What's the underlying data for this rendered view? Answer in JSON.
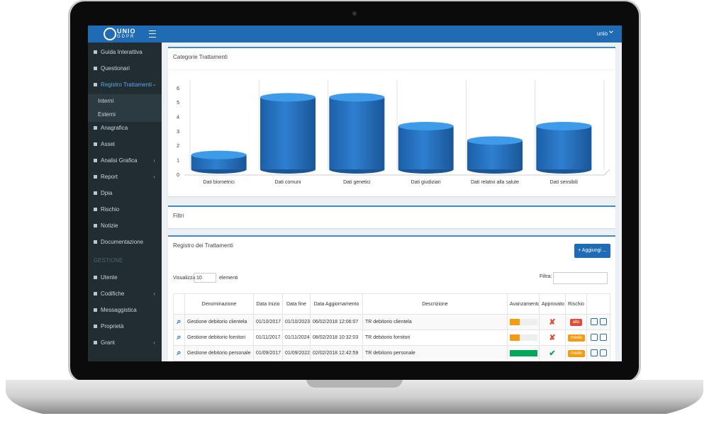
{
  "header": {
    "logo_top": "UNIO",
    "logo_bottom": "GDPR",
    "user": "unio"
  },
  "sidebar": {
    "items": [
      {
        "label": "Guida Interattiva",
        "expandable": false
      },
      {
        "label": "Questionari",
        "expandable": false
      },
      {
        "label": "Registro Trattamenti",
        "expandable": true,
        "active": true,
        "children": [
          "Interni",
          "Esterni"
        ]
      },
      {
        "label": "Anagrafica",
        "expandable": false
      },
      {
        "label": "Asset",
        "expandable": false
      },
      {
        "label": "Analisi Grafica",
        "expandable": true
      },
      {
        "label": "Report",
        "expandable": true
      },
      {
        "label": "Dpia",
        "expandable": false
      },
      {
        "label": "Rischio",
        "expandable": false
      },
      {
        "label": "Notizie",
        "expandable": false
      },
      {
        "label": "Documentazione",
        "expandable": false
      }
    ],
    "section": "GESTIONE",
    "section_items": [
      {
        "label": "Utente",
        "expandable": false
      },
      {
        "label": "Codifiche",
        "expandable": true
      },
      {
        "label": "Messaggistica",
        "expandable": false
      },
      {
        "label": "Proprietà",
        "expandable": false
      },
      {
        "label": "Grant",
        "expandable": true
      }
    ]
  },
  "chart_data": {
    "type": "bar",
    "title": "Categorie Trattamenti",
    "categories": [
      "Dati biometrici",
      "Dati comuni",
      "Dati genetici",
      "Dati giudiziari",
      "Dati relativi alla salute",
      "Dati sensibili"
    ],
    "values": [
      1,
      5,
      5,
      3,
      2,
      3
    ],
    "color": "#2f7fd0",
    "ylim": [
      0,
      6
    ],
    "yticks": [
      0,
      1,
      2,
      3,
      4,
      5,
      6
    ]
  },
  "filters": {
    "title": "Filtri"
  },
  "register": {
    "title": "Registro dei Trattamenti",
    "add_button": "+ Aggiungi ...",
    "show_label": "Visualizza",
    "page_size": "10",
    "entries_label": "elementi",
    "filter_label": "Filtra:",
    "columns": [
      "Denominazione",
      "Data Inizio",
      "Data fine",
      "Data Aggiornamento",
      "Descrizione",
      "Avanzamento",
      "Approvato",
      "Rischio"
    ],
    "rows": [
      {
        "name": "Gestione debitorio clientela",
        "start": "01/10/2017",
        "end": "01/10/2023",
        "updated": "06/02/2018 12:06:07",
        "description": "TR debitorio clientela",
        "progress": 35,
        "progress_color": "#f39c12",
        "approved": false,
        "risk": "alto",
        "risk_color": "#dd4b39"
      },
      {
        "name": "Gestione debitorio fornitori",
        "start": "01/11/2017",
        "end": "01/11/2024",
        "updated": "08/02/2018 10:32:03",
        "description": "TR debitorio fornitori",
        "progress": 35,
        "progress_color": "#f39c12",
        "approved": false,
        "risk": "medio",
        "risk_color": "#f39c12"
      },
      {
        "name": "Gestione debitorio personale",
        "start": "01/09/2017",
        "end": "01/09/2022",
        "updated": "02/02/2018 12:42:59",
        "description": "TR debitorio personale",
        "progress": 100,
        "progress_color": "#00a65a",
        "approved": true,
        "risk": "medio",
        "risk_color": "#f39c12"
      }
    ]
  }
}
